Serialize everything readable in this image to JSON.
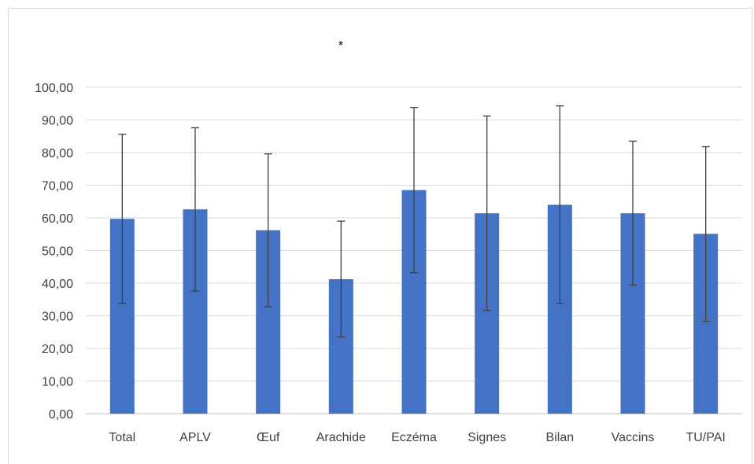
{
  "chart_data": {
    "type": "bar",
    "title": "",
    "xlabel": "",
    "ylabel": "",
    "annotation": "*",
    "categories": [
      "Total",
      "APLV",
      "Œuf",
      "Arachide",
      "Eczéma",
      "Signes",
      "Bilan",
      "Vaccins",
      "TU/PAI"
    ],
    "values": [
      59.7,
      62.6,
      56.2,
      41.2,
      68.5,
      61.4,
      64.0,
      61.4,
      55.1
    ],
    "error_low": [
      33.8,
      37.6,
      32.8,
      23.5,
      43.2,
      31.6,
      33.8,
      39.4,
      28.3
    ],
    "error_high": [
      85.6,
      87.6,
      79.6,
      59.0,
      93.8,
      91.2,
      94.3,
      83.5,
      81.8
    ],
    "ylim": [
      0,
      100
    ],
    "yticks": [
      "0,00",
      "10,00",
      "20,00",
      "30,00",
      "40,00",
      "50,00",
      "60,00",
      "70,00",
      "80,00",
      "90,00",
      "100,00"
    ],
    "grid": true,
    "legend": "none",
    "colors": {
      "bar": "#4472C4",
      "grid": "#d9d9d9",
      "axis": "#bfbfbf",
      "error": "#404040",
      "text": "#404040"
    }
  }
}
